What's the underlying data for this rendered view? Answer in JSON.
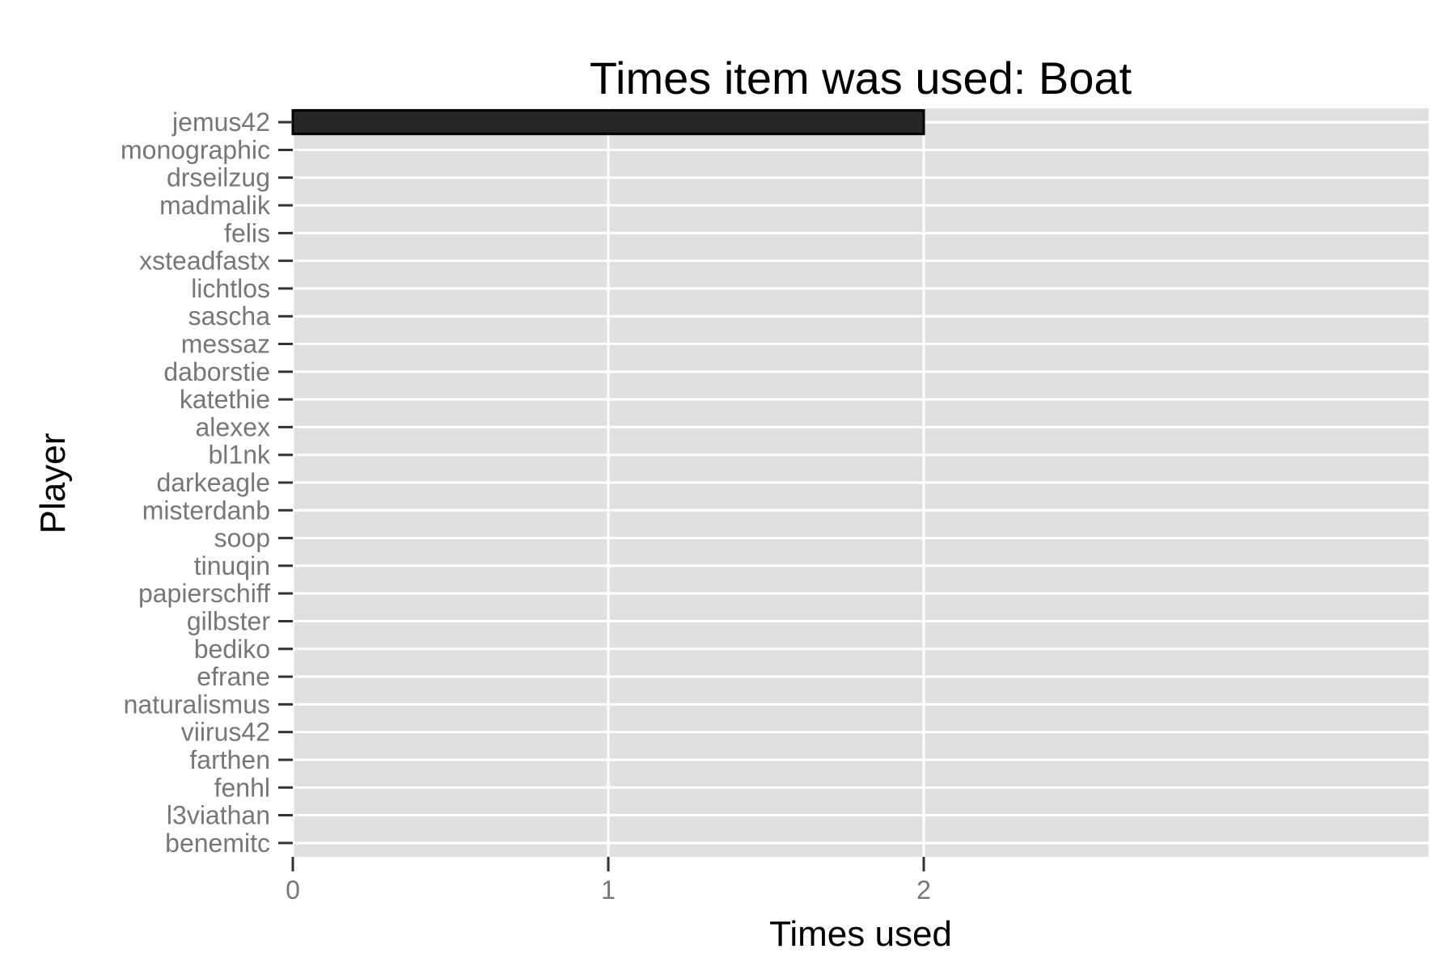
{
  "chart_data": {
    "type": "bar",
    "orientation": "horizontal",
    "title": "Times item was used: Boat",
    "xlabel": "Times used",
    "ylabel": "Player",
    "xlim": [
      0,
      3.6
    ],
    "x_ticks": [
      0,
      1,
      2
    ],
    "grid": true,
    "legend": "none",
    "colors": {
      "panel": "#e0e0e0",
      "grid": "#ffffff",
      "bar_fill": "#262626",
      "bar_stroke": "#000000",
      "tick_text": "#777777",
      "tick_mark": "#333333"
    },
    "categories": [
      "jemus42",
      "monographic",
      "drseilzug",
      "madmalik",
      "felis",
      "xsteadfastx",
      "lichtlos",
      "sascha",
      "messaz",
      "daborstie",
      "katethie",
      "alexex",
      "bl1nk",
      "darkeagle",
      "misterdanb",
      "soop",
      "tinuqin",
      "papierschiff",
      "gilbster",
      "bediko",
      "efrane",
      "naturalismus",
      "viirus42",
      "farthen",
      "fenhl",
      "l3viathan",
      "benemitc"
    ],
    "values": [
      2,
      0,
      0,
      0,
      0,
      0,
      0,
      0,
      0,
      0,
      0,
      0,
      0,
      0,
      0,
      0,
      0,
      0,
      0,
      0,
      0,
      0,
      0,
      0,
      0,
      0,
      0
    ]
  }
}
